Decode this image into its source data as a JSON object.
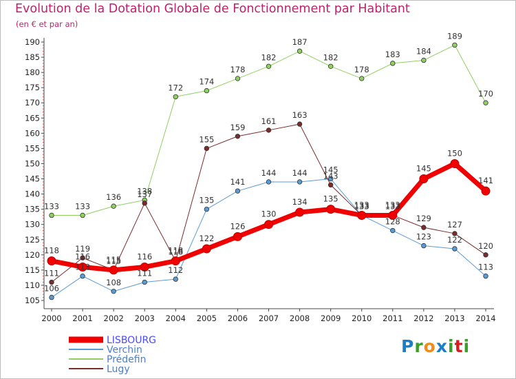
{
  "header": {
    "title": "Evolution de la Dotation Globale de Fonctionnement par Habitant",
    "subtitle": "(en € et par an)"
  },
  "brand": {
    "logo_text": "Proxiti",
    "colors": [
      "#1a7fc4",
      "#3a9e2a",
      "#f08c1a",
      "#1a7fc4",
      "#3a9e2a",
      "#d22020",
      "#3a9e2a"
    ]
  },
  "chart_data": {
    "type": "line",
    "x": [
      2000,
      2001,
      2002,
      2003,
      2004,
      2005,
      2006,
      2007,
      2008,
      2009,
      2010,
      2011,
      2012,
      2013,
      2014
    ],
    "ylim": [
      105,
      190
    ],
    "yticks": [
      105,
      110,
      115,
      120,
      125,
      130,
      135,
      140,
      145,
      150,
      155,
      160,
      165,
      170,
      175,
      180,
      185,
      190
    ],
    "grid": false,
    "legend_position": "bottom-left",
    "series": [
      {
        "name": "Verchin",
        "color": "#5b9bd5",
        "width": 1,
        "values": [
          106,
          113,
          108,
          111,
          112,
          135,
          141,
          144,
          144,
          145,
          133,
          128,
          123,
          122,
          113
        ]
      },
      {
        "name": "Prédefin",
        "color": "#90d060",
        "width": 1,
        "values": [
          133,
          133,
          136,
          138,
          172,
          174,
          178,
          182,
          187,
          182,
          178,
          183,
          184,
          189,
          170
        ]
      },
      {
        "name": "Lugy",
        "color": "#7a2b2b",
        "width": 1,
        "values": [
          111,
          119,
          115,
          137,
          118,
          155,
          159,
          161,
          163,
          143,
          133,
          133,
          129,
          127,
          120
        ]
      },
      {
        "name": "LISBOURG",
        "color": "#f00000",
        "width": 7,
        "values": [
          118,
          116,
          115,
          116,
          118,
          122,
          126,
          130,
          134,
          135,
          133,
          133,
          145,
          150,
          141
        ]
      }
    ],
    "legend": [
      {
        "name": "LISBOURG",
        "color": "#f00000",
        "text_color": "#4a4aff"
      },
      {
        "name": "Verchin",
        "color": "#5b9bd5",
        "text_color": "#4a7fd0"
      },
      {
        "name": "Prédefin",
        "color": "#90d060",
        "text_color": "#4a7fd0"
      },
      {
        "name": "Lugy",
        "color": "#7a2b2b",
        "text_color": "#4a7fd0"
      }
    ]
  }
}
